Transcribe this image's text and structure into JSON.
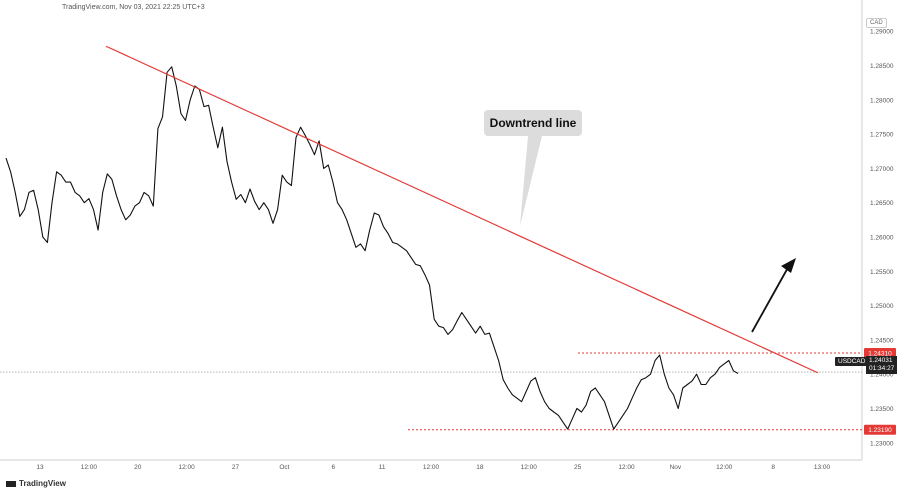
{
  "header": {
    "source_line": "TradingView.com, Nov 03, 2021 22:25 UTC+3"
  },
  "brand": {
    "logo": "tradingview-logo-icon",
    "name": "TradingView"
  },
  "currency_badge": "CAD",
  "annotation": {
    "text": "Downtrend line"
  },
  "colors": {
    "price": "#111111",
    "trend": "#e53935",
    "level": "#e53935",
    "last": "#888888"
  },
  "chart_data": {
    "type": "line",
    "symbol": "USDCAD",
    "x_tick_labels": [
      "13",
      "12:00",
      "20",
      "12:00",
      "27",
      "Oct",
      "6",
      "11",
      "12:00",
      "18",
      "12:00",
      "25",
      "12:00",
      "Nov",
      "12:00",
      "8",
      "13:00"
    ],
    "y_tick_labels": [
      "1.29000",
      "1.28500",
      "1.28000",
      "1.27500",
      "1.27000",
      "1.26500",
      "1.26000",
      "1.25500",
      "1.25000",
      "1.24500",
      "1.24000",
      "1.23500",
      "1.23000"
    ],
    "ylim": [
      1.2275,
      1.2925
    ],
    "price_series": [
      1.2715,
      1.2695,
      1.2665,
      1.263,
      1.264,
      1.2665,
      1.2668,
      1.264,
      1.26,
      1.2592,
      1.265,
      1.2695,
      1.269,
      1.268,
      1.268,
      1.2665,
      1.266,
      1.265,
      1.2656,
      1.264,
      1.261,
      1.2665,
      1.2692,
      1.2684,
      1.266,
      1.264,
      1.2625,
      1.2632,
      1.2645,
      1.265,
      1.2665,
      1.266,
      1.2645,
      1.2758,
      1.2775,
      1.284,
      1.2848,
      1.282,
      1.278,
      1.277,
      1.28,
      1.282,
      1.2815,
      1.279,
      1.2792,
      1.276,
      1.273,
      1.276,
      1.271,
      1.268,
      1.2655,
      1.2662,
      1.265,
      1.267,
      1.2652,
      1.264,
      1.265,
      1.264,
      1.262,
      1.264,
      1.269,
      1.268,
      1.2675,
      1.2745,
      1.276,
      1.2748,
      1.2735,
      1.272,
      1.274,
      1.27,
      1.2705,
      1.268,
      1.265,
      1.264,
      1.2625,
      1.2605,
      1.2585,
      1.259,
      1.258,
      1.261,
      1.2635,
      1.2632,
      1.2615,
      1.2605,
      1.2592,
      1.259,
      1.2585,
      1.258,
      1.257,
      1.256,
      1.2558,
      1.2545,
      1.253,
      1.248,
      1.247,
      1.2468,
      1.2458,
      1.2465,
      1.2478,
      1.249,
      1.248,
      1.247,
      1.246,
      1.247,
      1.2458,
      1.246,
      1.244,
      1.242,
      1.2392,
      1.238,
      1.237,
      1.2365,
      1.236,
      1.2375,
      1.239,
      1.2395,
      1.2375,
      1.236,
      1.235,
      1.2345,
      1.234,
      1.233,
      1.232,
      1.2335,
      1.235,
      1.2345,
      1.2355,
      1.2375,
      1.238,
      1.237,
      1.236,
      1.234,
      1.232,
      1.233,
      1.234,
      1.235,
      1.2365,
      1.238,
      1.2392,
      1.2395,
      1.24,
      1.242,
      1.2428,
      1.24,
      1.238,
      1.237,
      1.235,
      1.238,
      1.2385,
      1.239,
      1.24,
      1.2385,
      1.2385,
      1.2395,
      1.24,
      1.241,
      1.2415,
      1.242,
      1.2405,
      1.2401
    ],
    "trend_line": {
      "from": [
        0.08,
        1.2878
      ],
      "to": [
        0.965,
        1.2402
      ],
      "note": "x as fraction of visible time range"
    },
    "levels": [
      {
        "value": 1.2431,
        "label": "1.24310",
        "style": "dotted"
      },
      {
        "value": 1.2319,
        "label": "1.23190",
        "style": "dotted"
      }
    ],
    "last_price": {
      "value": 1.24031,
      "label": "1.24031",
      "countdown": "01:34:27",
      "symbol": "USDCAD"
    },
    "arrow": {
      "direction": "up",
      "meaning": "breakout expected"
    }
  }
}
